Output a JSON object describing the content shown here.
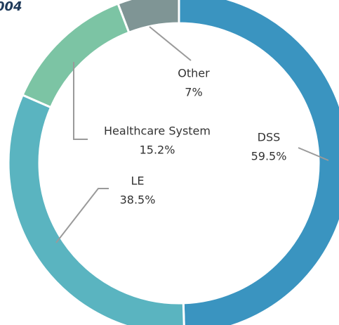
{
  "chart_data": {
    "type": "donut",
    "title": "004",
    "categories": [
      "DSS",
      "LE",
      "Healthcare System",
      "Other"
    ],
    "values": [
      59.5,
      38.5,
      15.2,
      7
    ],
    "value_labels": [
      "59.5%",
      "38.5%",
      "15.2%",
      "7%"
    ],
    "colors": [
      "#3a94c0",
      "#5ab4c0",
      "#7cc4a4",
      "#7f9595"
    ]
  }
}
